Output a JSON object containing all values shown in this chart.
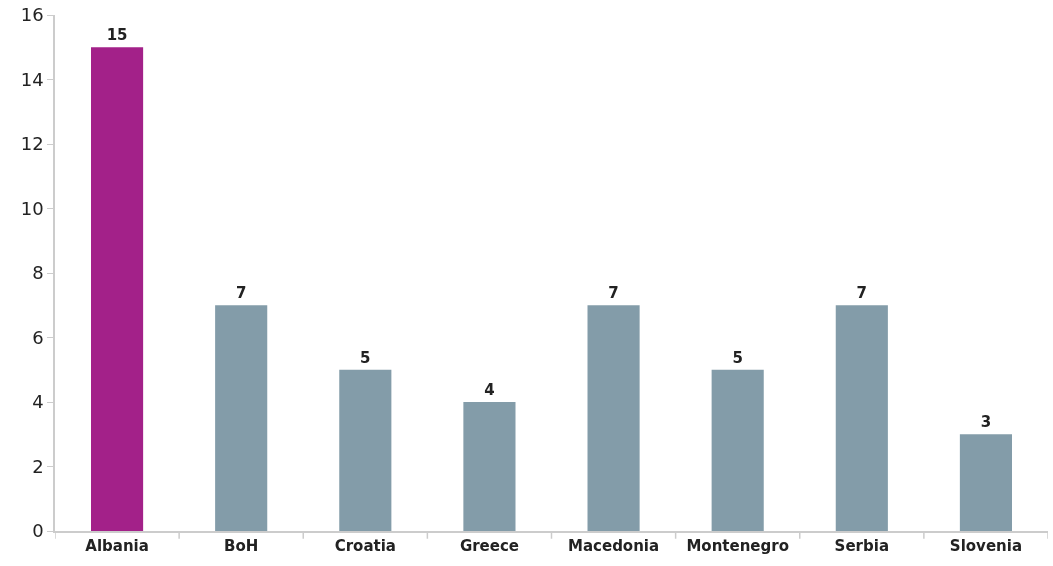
{
  "chart_data": {
    "type": "bar",
    "categories": [
      "Albania",
      "BoH",
      "Croatia",
      "Greece",
      "Macedonia",
      "Montenegro",
      "Serbia",
      "Slovenia"
    ],
    "values": [
      15,
      7,
      5,
      4,
      7,
      5,
      7,
      3
    ],
    "colors": [
      "#a32189",
      "#839ca9",
      "#839ca9",
      "#839ca9",
      "#839ca9",
      "#839ca9",
      "#839ca9",
      "#839ca9"
    ],
    "ylim": [
      0,
      16
    ],
    "yticks": [
      0,
      2,
      4,
      6,
      8,
      10,
      12,
      14,
      16
    ],
    "data_labels": true
  }
}
